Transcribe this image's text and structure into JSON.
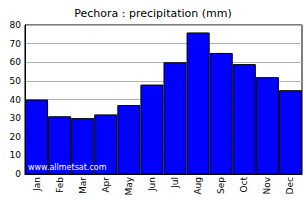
{
  "chart_data": {
    "type": "bar",
    "title": "Pechora : precipitation (mm)",
    "annotation": "www.allmetsat.com",
    "categories": [
      "Jan",
      "Feb",
      "Mar",
      "Apr",
      "May",
      "Jun",
      "Jul",
      "Aug",
      "Sep",
      "Oct",
      "Nov",
      "Dec"
    ],
    "values": [
      40,
      31,
      30,
      32,
      37,
      48,
      60,
      76,
      65,
      59,
      52,
      45
    ],
    "color": "#0000ff",
    "ylim": [
      0,
      80
    ],
    "yticks": [
      0,
      10,
      20,
      30,
      40,
      50,
      60,
      70,
      80
    ],
    "grid": true
  }
}
